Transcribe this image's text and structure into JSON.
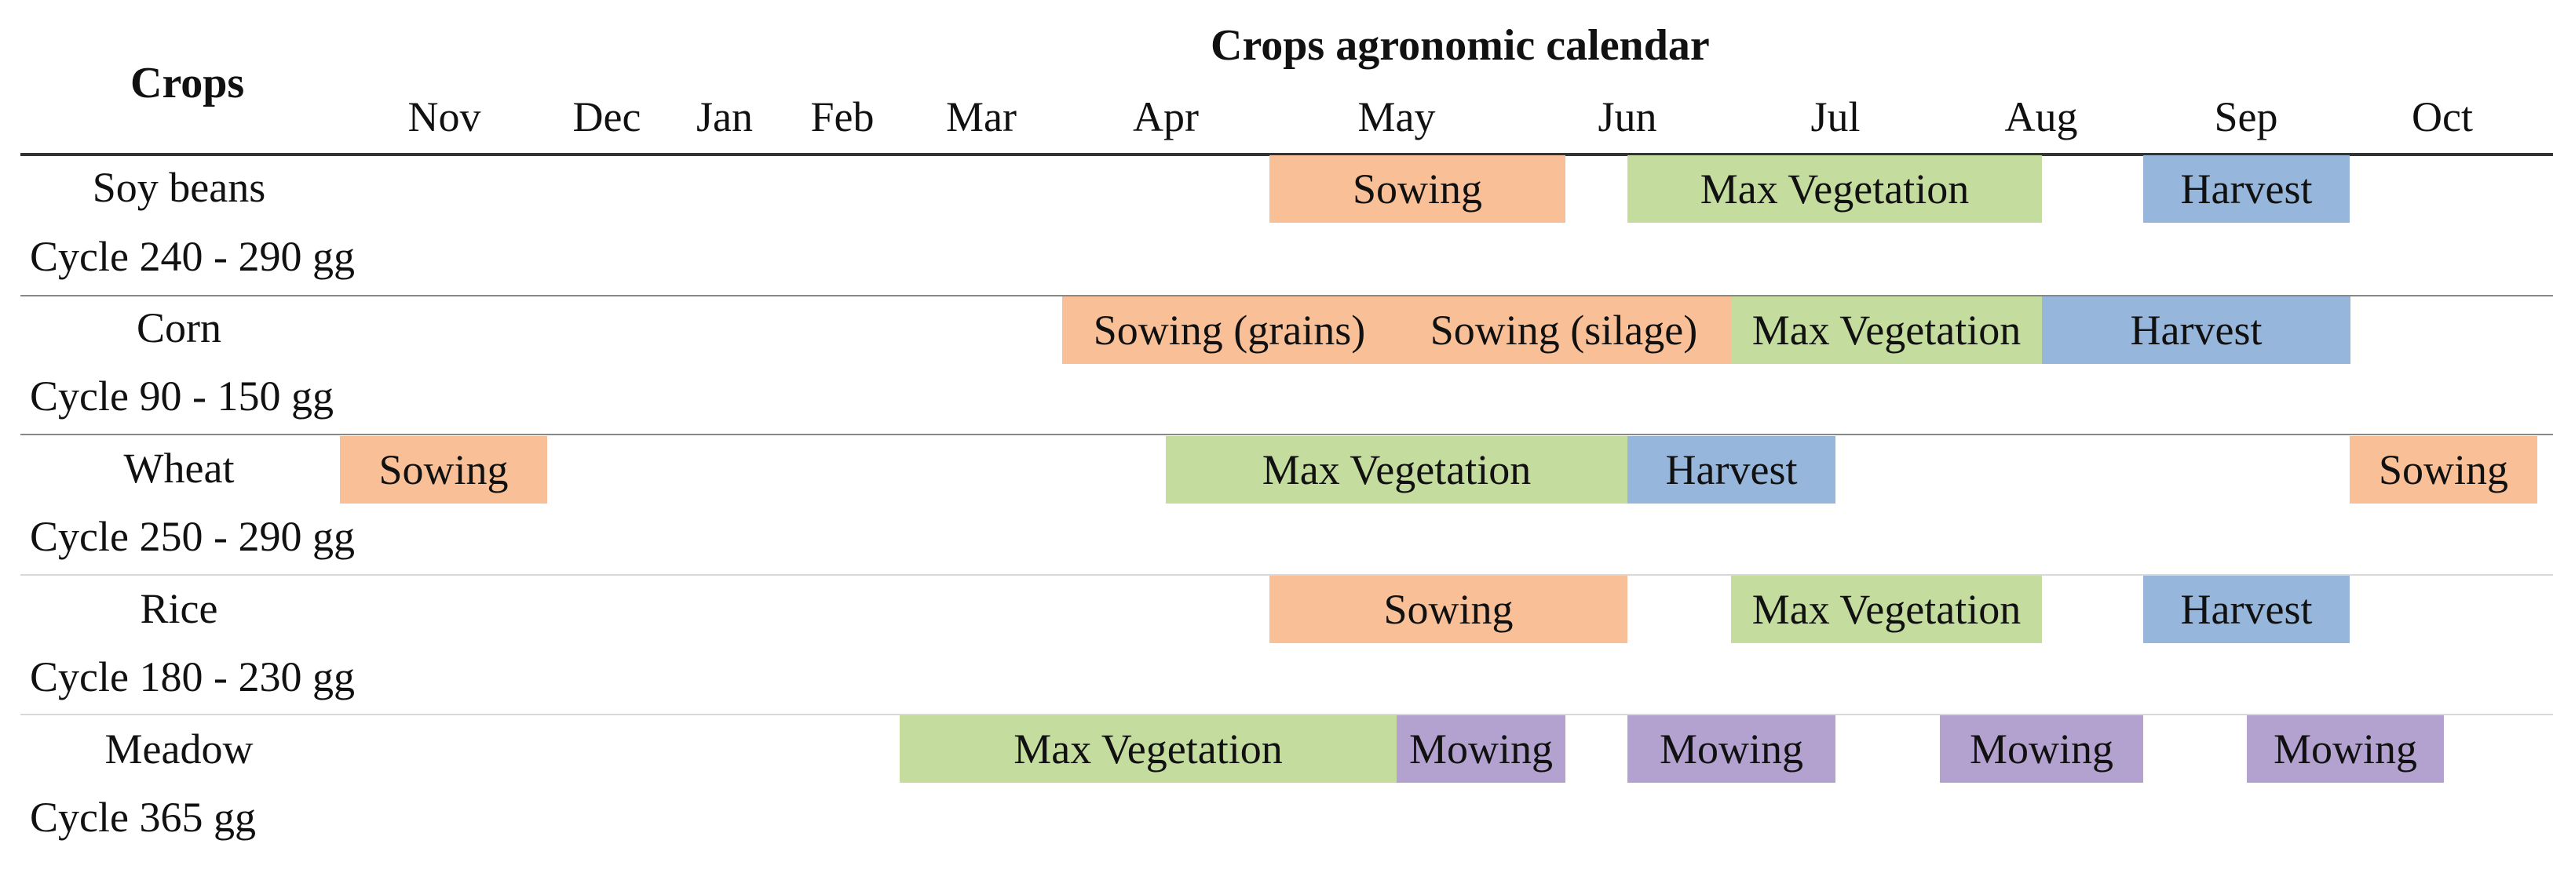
{
  "title": "Crops agronomic calendar",
  "crops_header": "Crops",
  "months": [
    "Nov",
    "Dec",
    "Jan",
    "Feb",
    "Mar",
    "Apr",
    "May",
    "Jun",
    "Jul",
    "Aug",
    "Sep",
    "Oct"
  ],
  "colors": {
    "sowing": "#f9c097",
    "vegetation": "#c5dc9f",
    "harvest": "#97b6dc",
    "mowing": "#b3a1cf"
  },
  "crops": [
    {
      "name": "Soy beans",
      "cycle": "Cycle 240 - 290 gg",
      "phases": [
        {
          "label": "Sowing",
          "type": "sowing",
          "start_month": 6.0,
          "end_month": 7.2
        },
        {
          "label": "Max Vegetation",
          "type": "vegetation",
          "start_month": 7.5,
          "end_month": 9.5
        },
        {
          "label": "Harvest",
          "type": "harvest",
          "start_month": 10.0,
          "end_month": 11.0
        }
      ]
    },
    {
      "name": "Corn",
      "cycle": "Cycle 90 - 150 gg",
      "phases": [
        {
          "label": "Sowing (grains)",
          "type": "sowing",
          "start_month": 5.0,
          "end_month": 6.5
        },
        {
          "label": "Sowing (silage)",
          "type": "sowing",
          "start_month": 6.5,
          "end_month": 8.0
        },
        {
          "label": "Max Vegetation",
          "type": "vegetation",
          "start_month": 8.0,
          "end_month": 9.5
        },
        {
          "label": "Harvest",
          "type": "harvest",
          "start_month": 9.5,
          "end_month": 11.0
        }
      ]
    },
    {
      "name": "Wheat",
      "cycle": "Cycle 250 - 290 gg",
      "phases": [
        {
          "label": "Sowing",
          "type": "sowing",
          "start_month": 0.0,
          "end_month": 1.0
        },
        {
          "label": "Max Vegetation",
          "type": "vegetation",
          "start_month": 5.5,
          "end_month": 7.5
        },
        {
          "label": "Harvest",
          "type": "harvest",
          "start_month": 7.5,
          "end_month": 8.5
        },
        {
          "label": "Sowing",
          "type": "sowing",
          "start_month": 11.0,
          "end_month": 12.0
        }
      ]
    },
    {
      "name": "Rice",
      "cycle": "Cycle 180 - 230 gg",
      "phases": [
        {
          "label": "Sowing",
          "type": "sowing",
          "start_month": 6.0,
          "end_month": 7.5
        },
        {
          "label": "Max Vegetation",
          "type": "vegetation",
          "start_month": 8.0,
          "end_month": 9.5
        },
        {
          "label": "Harvest",
          "type": "harvest",
          "start_month": 10.0,
          "end_month": 11.0
        }
      ]
    },
    {
      "name": "Meadow",
      "cycle": "Cycle 365 gg",
      "phases": [
        {
          "label": "Max Vegetation",
          "type": "vegetation",
          "start_month": 4.0,
          "end_month": 6.5
        },
        {
          "label": "Mowing",
          "type": "mowing",
          "start_month": 6.5,
          "end_month": 7.2
        },
        {
          "label": "Mowing",
          "type": "mowing",
          "start_month": 7.5,
          "end_month": 8.5
        },
        {
          "label": "Mowing",
          "type": "mowing",
          "start_month": 9.0,
          "end_month": 10.0
        },
        {
          "label": "Mowing",
          "type": "mowing",
          "start_month": 10.5,
          "end_month": 11.5
        }
      ]
    }
  ]
}
